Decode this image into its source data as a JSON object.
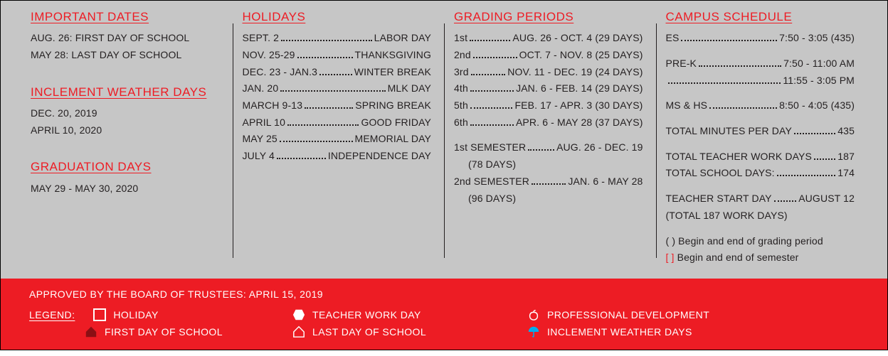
{
  "colors": {
    "accent": "#ed1c24",
    "panel": "#c6c6c6",
    "text": "#231f20",
    "umbrella": "#00adee"
  },
  "important_dates": {
    "heading": "IMPORTANT DATES",
    "lines": [
      "AUG. 26:  FIRST DAY OF SCHOOL",
      "MAY 28:  LAST DAY OF SCHOOL"
    ]
  },
  "inclement": {
    "heading": "INCLEMENT WEATHER DAYS",
    "lines": [
      "DEC. 20, 2019",
      "APRIL 10, 2020"
    ]
  },
  "graduation": {
    "heading": "GRADUATION DAYS",
    "lines": [
      "MAY 29 - MAY 30, 2020"
    ]
  },
  "holidays": {
    "heading": "HOLIDAYS",
    "rows": [
      {
        "l": "SEPT. 2",
        "r": "LABOR DAY"
      },
      {
        "l": "NOV. 25-29",
        "r": "THANKSGIVING"
      },
      {
        "l": "DEC. 23 - JAN.3",
        "r": "WINTER BREAK"
      },
      {
        "l": "JAN. 20",
        "r": "MLK DAY"
      },
      {
        "l": "MARCH 9-13",
        "r": "SPRING BREAK"
      },
      {
        "l": "APRIL 10",
        "r": "GOOD FRIDAY"
      },
      {
        "l": "MAY 25",
        "r": "MEMORIAL DAY"
      },
      {
        "l": "JULY 4",
        "r": "INDEPENDENCE DAY"
      }
    ]
  },
  "grading": {
    "heading": "GRADING PERIODS",
    "rows": [
      {
        "l": "1st",
        "r": "AUG. 26 - OCT. 4 (29 DAYS)"
      },
      {
        "l": "2nd",
        "r": "OCT. 7 - NOV. 8 (25 DAYS)"
      },
      {
        "l": "3rd",
        "r": "NOV. 11 - DEC. 19 (24 DAYS)"
      },
      {
        "l": "4th",
        "r": "JAN. 6 - FEB. 14 (29 DAYS)"
      },
      {
        "l": "5th",
        "r": "FEB. 17 - APR. 3 (30 DAYS)"
      },
      {
        "l": "6th",
        "r": "APR. 6 - MAY 28 (37 DAYS)"
      }
    ],
    "semesters": [
      {
        "l": "1st SEMESTER",
        "r": "AUG. 26 - DEC. 19",
        "sub": "(78 DAYS)"
      },
      {
        "l": "2nd SEMESTER",
        "r": "JAN. 6 - MAY 28",
        "sub": "(96 DAYS)"
      }
    ]
  },
  "campus": {
    "heading": "CAMPUS SCHEDULE",
    "rows1": [
      {
        "l": "ES",
        "r": "7:50 - 3:05   (435)"
      }
    ],
    "rows2": [
      {
        "l": "PRE-K",
        "r": "7:50 - 11:00 AM"
      },
      {
        "l": "",
        "r": "11:55 - 3:05 PM"
      }
    ],
    "rows3": [
      {
        "l": "MS & HS",
        "r": "8:50 - 4:05 (435)"
      }
    ],
    "rows4": [
      {
        "l": "TOTAL MINUTES PER DAY",
        "r": "435"
      }
    ],
    "rows5": [
      {
        "l": "TOTAL TEACHER WORK DAYS",
        "r": "187"
      },
      {
        "l": "TOTAL SCHOOL DAYS:",
        "r": "174"
      }
    ],
    "rows6": [
      {
        "l": "TEACHER START DAY",
        "r": "AUGUST 12"
      }
    ],
    "tail": "(TOTAL 187 WORK DAYS)",
    "notes": [
      "( ) Begin and end of grading period",
      "[ ] Begin and end of semester"
    ]
  },
  "footer": {
    "approved": "APPROVED BY THE BOARD OF TRUSTEES:   APRIL 15, 2019",
    "legend_label": "LEGEND:",
    "items": {
      "holiday": "HOLIDAY",
      "teacher_work_day": "TEACHER WORK DAY",
      "professional_dev": "PROFESSIONAL DEVELOPMENT",
      "first_day": "FIRST DAY OF SCHOOL",
      "last_day": "LAST DAY OF SCHOOL",
      "inclement": "INCLEMENT WEATHER DAYS"
    }
  }
}
